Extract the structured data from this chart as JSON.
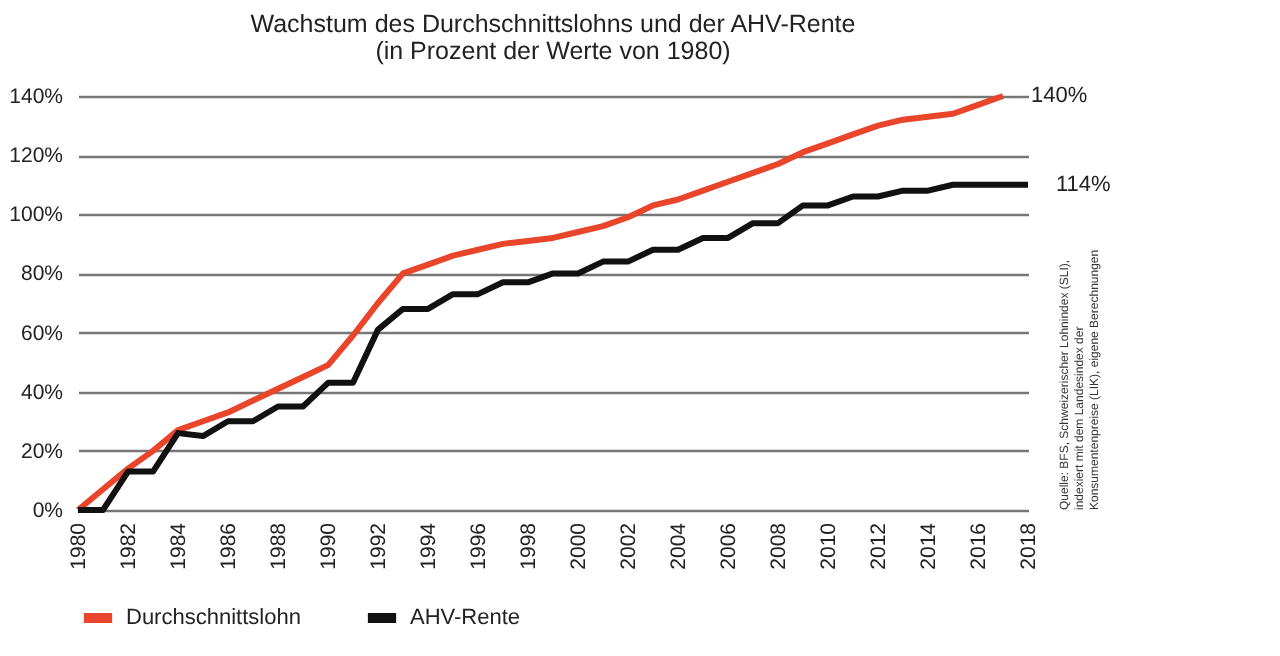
{
  "chart_data": {
    "type": "line",
    "title": "Wachstum des Durchschnittslohns und der AHV-Rente",
    "subtitle": "(in Prozent der Werte von 1980)",
    "x": [
      1980,
      1981,
      1982,
      1983,
      1984,
      1985,
      1986,
      1987,
      1988,
      1989,
      1990,
      1991,
      1992,
      1993,
      1994,
      1995,
      1996,
      1997,
      1998,
      1999,
      2000,
      2001,
      2002,
      2003,
      2004,
      2005,
      2006,
      2007,
      2008,
      2009,
      2010,
      2011,
      2012,
      2013,
      2014,
      2015,
      2016,
      2017,
      2018
    ],
    "series": [
      {
        "name": "Durchschnittslohn",
        "color": "#e8452a",
        "values": [
          0,
          7,
          14,
          20,
          27,
          30,
          33,
          37,
          41,
          45,
          49,
          59,
          70,
          80,
          83,
          86,
          88,
          90,
          91,
          92,
          94,
          96,
          99,
          103,
          105,
          108,
          111,
          114,
          117,
          121,
          124,
          127,
          130,
          132,
          133,
          134,
          137,
          140,
          null
        ]
      },
      {
        "name": "AHV-Rente",
        "color": "#111111",
        "values": [
          0,
          0,
          13,
          13,
          26,
          25,
          30,
          30,
          35,
          35,
          43,
          43,
          61,
          68,
          68,
          73,
          73,
          77,
          77,
          80,
          80,
          84,
          84,
          88,
          88,
          92,
          92,
          97,
          97,
          103,
          103,
          106,
          106,
          108,
          108,
          110,
          110,
          110,
          110
        ]
      }
    ],
    "xlim": [
      1980,
      2018
    ],
    "xticks": [
      1980,
      1982,
      1984,
      1986,
      1988,
      1990,
      1992,
      1994,
      1996,
      1998,
      2000,
      2002,
      2004,
      2006,
      2008,
      2010,
      2012,
      2014,
      2016,
      2018
    ],
    "ylim": [
      0,
      140
    ],
    "yticks": [
      {
        "value": 0,
        "label": "0%"
      },
      {
        "value": 20,
        "label": "20%"
      },
      {
        "value": 40,
        "label": "40%"
      },
      {
        "value": 60,
        "label": "60%"
      },
      {
        "value": 80,
        "label": "80%"
      },
      {
        "value": 100,
        "label": "100%"
      },
      {
        "value": 120,
        "label": "120%"
      },
      {
        "value": 140,
        "label": "140%"
      }
    ],
    "grid": "y",
    "legend": "bottom",
    "annotations": [
      {
        "text": "140%",
        "x": 2017,
        "y": 140
      },
      {
        "text": "114%",
        "x": 2018,
        "y": 110
      },
      "Quelle: BFS, Schweizerischer Lohnindex (SLI), indexiert mit dem Landesindex der Konsumentenpreise (LIK), eigene Berechnungen"
    ]
  }
}
